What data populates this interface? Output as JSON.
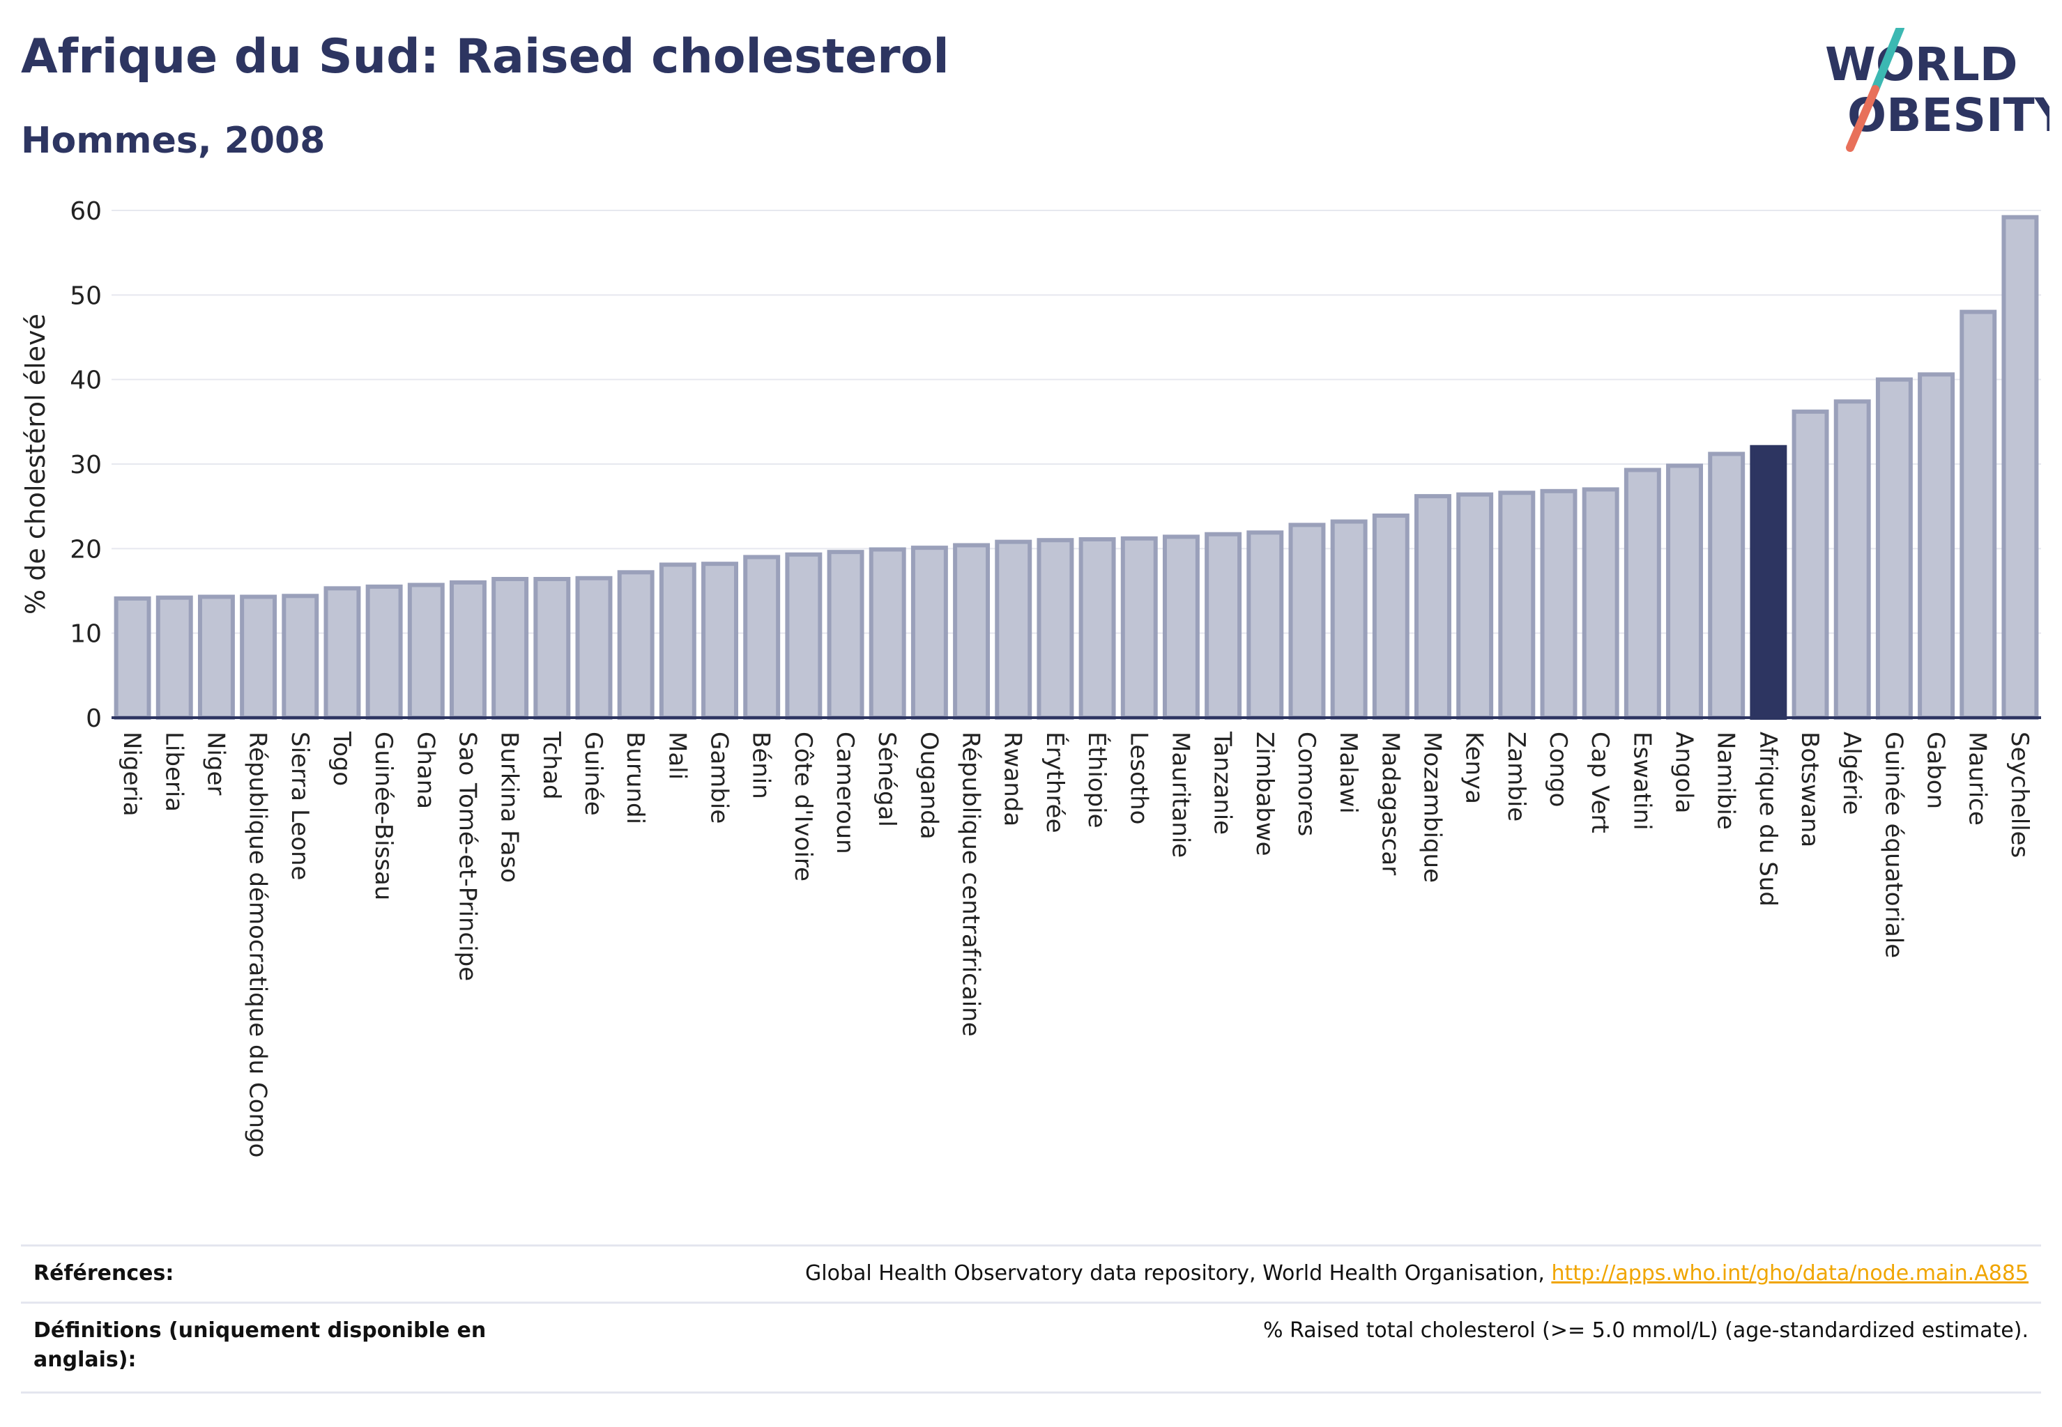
{
  "header": {
    "title": "Afrique du Sud: Raised cholesterol",
    "subtitle": "Hommes, 2008"
  },
  "logo": {
    "line1": "WORLD",
    "line2": "OBESITY",
    "accent_teal": "#3cb8b2",
    "accent_coral": "#e8705a"
  },
  "colors": {
    "bar": "#c0c4d4",
    "bar_stroke": "#9aa0ba",
    "highlight": "#2d3561",
    "text": "#2d3561",
    "link": "#f0a500"
  },
  "chart_data": {
    "type": "bar",
    "ylabel": "% de cholestérol élevé",
    "ylim": [
      0,
      60
    ],
    "yticks": [
      0,
      10,
      20,
      30,
      40,
      50,
      60
    ],
    "grid": true,
    "highlight": "Afrique du Sud",
    "categories": [
      "Nigeria",
      "Liberia",
      "Niger",
      "République démocratique du Congo",
      "Sierra Leone",
      "Togo",
      "Guinée-Bissau",
      "Ghana",
      "Sao Tomé-et-Principe",
      "Burkina Faso",
      "Tchad",
      "Guinée",
      "Burundi",
      "Mali",
      "Gambie",
      "Bénin",
      "Côte d'Ivoire",
      "Cameroun",
      "Sénégal",
      "Ouganda",
      "République centrafricaine",
      "Rwanda",
      "Érythrée",
      "Éthiopie",
      "Lesotho",
      "Mauritanie",
      "Tanzanie",
      "Zimbabwe",
      "Comores",
      "Malawi",
      "Madagascar",
      "Mozambique",
      "Kenya",
      "Zambie",
      "Congo",
      "Cap Vert",
      "Eswatini",
      "Angola",
      "Namibie",
      "Afrique du Sud",
      "Botswana",
      "Algérie",
      "Guinée équatoriale",
      "Gabon",
      "Maurice",
      "Seychelles"
    ],
    "values": [
      14.1,
      14.2,
      14.3,
      14.3,
      14.4,
      15.3,
      15.5,
      15.7,
      16.0,
      16.4,
      16.4,
      16.5,
      17.2,
      18.1,
      18.2,
      19.0,
      19.3,
      19.6,
      19.9,
      20.1,
      20.4,
      20.8,
      21.0,
      21.1,
      21.2,
      21.4,
      21.7,
      21.9,
      22.8,
      23.2,
      23.9,
      26.2,
      26.4,
      26.6,
      26.8,
      27.0,
      29.3,
      29.8,
      31.2,
      32.0,
      36.2,
      37.4,
      40.0,
      40.6,
      48.0,
      59.2
    ]
  },
  "footer": {
    "ref_label": "Références:",
    "ref_text": "Global Health Observatory data repository, World Health Organisation, ",
    "ref_link": "http://apps.who.int/gho/data/node.main.A885",
    "def_label": "Définitions (uniquement disponible en anglais):",
    "def_text": "% Raised total cholesterol (>= 5.0 mmol/L) (age-standardized estimate)."
  }
}
